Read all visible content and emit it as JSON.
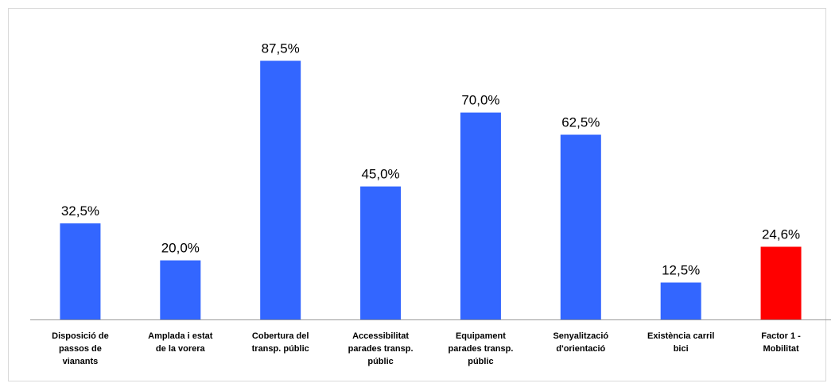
{
  "chart_data": {
    "type": "bar",
    "title": "",
    "xlabel": "",
    "ylabel": "",
    "ylim": [
      0,
      100
    ],
    "grid": false,
    "legend": "none",
    "categories": [
      [
        "Disposició de",
        "passos de",
        "vianants"
      ],
      [
        "Amplada i estat",
        "de la vorera"
      ],
      [
        "Cobertura del",
        "transp. públic"
      ],
      [
        "Accessibilitat",
        "parades transp.",
        "públic"
      ],
      [
        "Equipament",
        "parades transp.",
        "públic"
      ],
      [
        "Senyalització",
        "d'orientació"
      ],
      [
        "Existència carril",
        "bici"
      ],
      [
        "Factor 1 -",
        "Mobilitat"
      ]
    ],
    "values": [
      32.5,
      20.0,
      87.5,
      45.0,
      70.0,
      62.5,
      12.5,
      24.6
    ],
    "value_labels": [
      "32,5%",
      "20,0%",
      "87,5%",
      "45,0%",
      "70,0%",
      "62,5%",
      "12,5%",
      "24,6%"
    ],
    "colors": [
      "#3366ff",
      "#3366ff",
      "#3366ff",
      "#3366ff",
      "#3366ff",
      "#3366ff",
      "#3366ff",
      "#ff0000"
    ]
  }
}
